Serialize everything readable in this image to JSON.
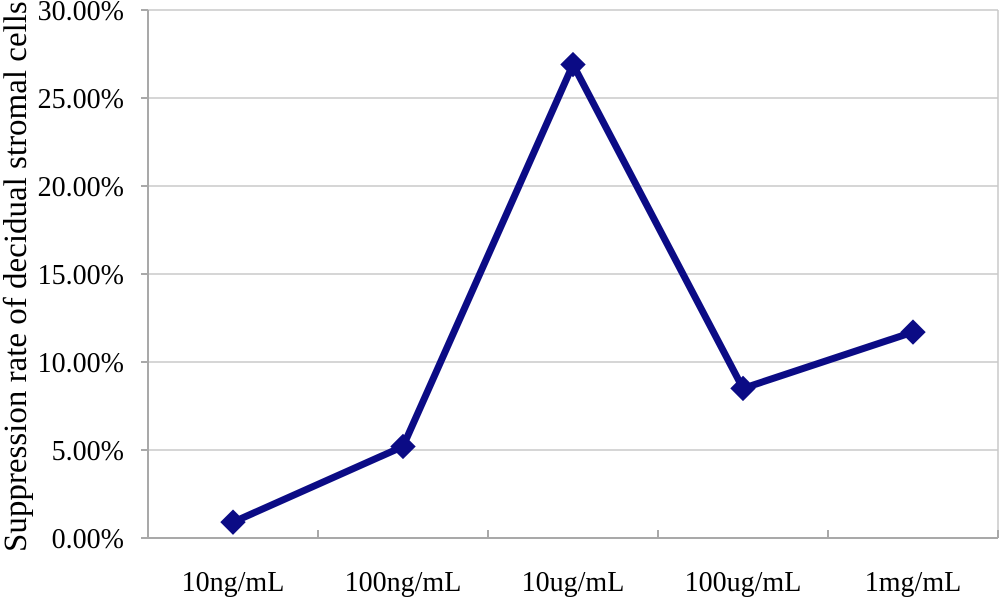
{
  "chart_data": {
    "type": "line",
    "title": "",
    "xlabel": "",
    "ylabel": "Suppression rate of decidual stromal cells",
    "categories": [
      "10ng/mL",
      "100ng/mL",
      "10ug/mL",
      "100ug/mL",
      "1mg/mL"
    ],
    "values": [
      0.9,
      5.2,
      26.9,
      8.5,
      11.7
    ],
    "values_unit": "percent",
    "ylim": [
      0,
      30
    ],
    "ytick_step": 5,
    "ytick_labels": [
      "0.00%",
      "5.00%",
      "10.00%",
      "15.00%",
      "20.00%",
      "25.00%",
      "30.00%"
    ],
    "grid": true,
    "legend": "none",
    "marker_shape": "diamond",
    "colors": {
      "line": "#0b0b85",
      "marker": "#0b0b85",
      "gridline": "#c9c9c9",
      "axis": "#a9a9a9",
      "text": "#000000",
      "background": "#ffffff"
    }
  }
}
